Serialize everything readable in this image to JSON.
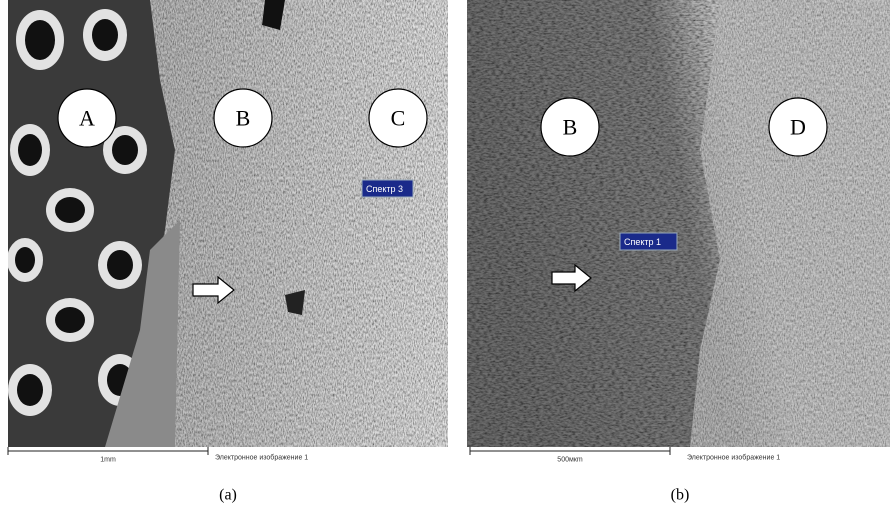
{
  "panels": [
    {
      "regions": [
        "A",
        "B",
        "C"
      ],
      "spectrum": "Спектр 3",
      "scale": "1mm",
      "caption": "Электронное изображение 1",
      "label": "(a)"
    },
    {
      "regions": [
        "B",
        "D"
      ],
      "spectrum": "Спектр 1",
      "scale": "500мкm",
      "caption": "Электронное изображение 1",
      "label": "(b)"
    }
  ]
}
